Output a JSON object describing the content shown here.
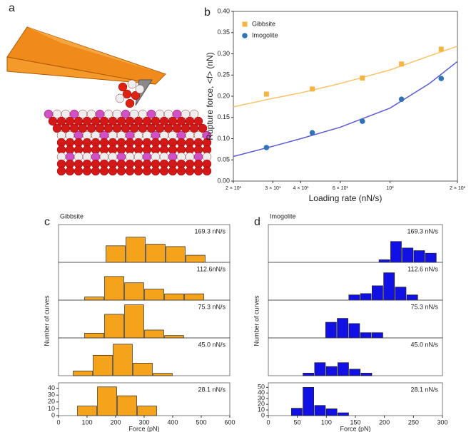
{
  "illustration": {
    "panel_label": "a"
  },
  "chart_data": [
    {
      "type": "scatter",
      "panel_label": "b",
      "xlabel": "Loading rate (nN/s)",
      "ylabel": "Rupture force, <f> (nN)",
      "xscale": "log",
      "xlim": [
        20,
        200
      ],
      "xticks": [
        {
          "value": 20,
          "label": "2 × 10¹"
        },
        {
          "value": 30,
          "label": "3 × 10¹"
        },
        {
          "value": 40,
          "label": "4 × 10¹"
        },
        {
          "value": 60,
          "label": "6 × 10¹"
        },
        {
          "value": 100,
          "label": "10²"
        },
        {
          "value": 200,
          "label": "2 × 10²"
        }
      ],
      "ylim": [
        0,
        0.4
      ],
      "yticks": [
        {
          "value": 0,
          "label": "0.00"
        },
        {
          "value": 0.05,
          "label": "0.05"
        },
        {
          "value": 0.1,
          "label": "0.10"
        },
        {
          "value": 0.15,
          "label": "0.15"
        },
        {
          "value": 0.2,
          "label": "0.20"
        },
        {
          "value": 0.25,
          "label": "0.25"
        },
        {
          "value": 0.3,
          "label": "0.30"
        },
        {
          "value": 0.35,
          "label": "0.35"
        },
        {
          "value": 0.4,
          "label": "0.40"
        }
      ],
      "legend": "upper left",
      "series": [
        {
          "name": "Gibbsite",
          "color": "#f6b443",
          "marker": "square",
          "x": [
            28.1,
            45.0,
            75.3,
            112.6,
            169.3
          ],
          "values": [
            0.205,
            0.217,
            0.243,
            0.276,
            0.311
          ]
        },
        {
          "name": "Imogolite",
          "color": "#2f75b5",
          "marker": "circle",
          "x": [
            28.1,
            45.0,
            75.3,
            112.6,
            169.3
          ],
          "values": [
            0.079,
            0.114,
            0.141,
            0.193,
            0.242
          ]
        }
      ],
      "fits": [
        {
          "color": "#f8c46a",
          "x": [
            20,
            30,
            40,
            60,
            100,
            150,
            200
          ],
          "values": [
            0.175,
            0.195,
            0.208,
            0.23,
            0.262,
            0.295,
            0.318
          ]
        },
        {
          "color": "#5b5bd8",
          "x": [
            20,
            30,
            40,
            60,
            100,
            150,
            200
          ],
          "values": [
            0.058,
            0.082,
            0.1,
            0.127,
            0.172,
            0.23,
            0.282
          ]
        }
      ]
    },
    {
      "type": "histogram-stack",
      "panel_label": "c",
      "title": "Gibbsite",
      "xlabel": "Force (pN)",
      "ylabel": "Number of curves",
      "color": "#f5a31a",
      "xlim": [
        0,
        600
      ],
      "xticks": [
        0,
        100,
        200,
        300,
        400,
        500,
        600
      ],
      "panels": [
        {
          "label": "169.3 nN/s",
          "bins": [
            165,
            235,
            305,
            375,
            445,
            515
          ],
          "counts": [
            21,
            32,
            23,
            20,
            9
          ],
          "ylim": [
            0,
            48
          ]
        },
        {
          "label": "112.6nN/s",
          "bins": [
            90,
            160,
            230,
            300,
            370,
            440,
            510
          ],
          "counts": [
            4,
            30,
            22,
            14,
            8,
            8
          ],
          "ylim": [
            0,
            48
          ]
        },
        {
          "label": "75.3 nN/s",
          "bins": [
            90,
            160,
            230,
            300,
            370,
            440
          ],
          "counts": [
            6,
            30,
            42,
            10,
            3
          ],
          "ylim": [
            0,
            48
          ]
        },
        {
          "label": "45.0 nN/s",
          "bins": [
            50,
            120,
            190,
            260,
            330,
            400
          ],
          "counts": [
            6,
            26,
            40,
            16,
            3
          ],
          "ylim": [
            0,
            48
          ]
        },
        {
          "label": "28.1 nN/s",
          "bins": [
            65,
            135,
            205,
            275,
            345
          ],
          "counts": [
            14,
            42,
            29,
            14
          ],
          "ylim": [
            0,
            48
          ],
          "yticks": [
            0,
            10,
            20,
            30,
            40
          ]
        }
      ]
    },
    {
      "type": "histogram-stack",
      "panel_label": "d",
      "title": "Imogolite",
      "xlabel": "Force (pN)",
      "ylabel": "Number of curves",
      "color": "#1111e6",
      "xlim": [
        0,
        300
      ],
      "xticks": [
        0,
        50,
        100,
        150,
        200,
        250,
        300
      ],
      "panels": [
        {
          "label": "169.3 nN/s",
          "bins": [
            190,
            210,
            230,
            250,
            270,
            290
          ],
          "counts": [
            4,
            32,
            22,
            18,
            14
          ],
          "ylim": [
            0,
            58
          ]
        },
        {
          "label": "112.6 nN/s",
          "bins": [
            138,
            158,
            178,
            198,
            218,
            238,
            258
          ],
          "counts": [
            8,
            10,
            22,
            42,
            20,
            8
          ],
          "ylim": [
            0,
            58
          ]
        },
        {
          "label": "75.3 nN/s",
          "bins": [
            98,
            118,
            138,
            158,
            178,
            198
          ],
          "counts": [
            24,
            30,
            22,
            8,
            8
          ],
          "ylim": [
            0,
            58
          ]
        },
        {
          "label": "45.0 nN/s",
          "bins": [
            59,
            79,
            99,
            119,
            139,
            159,
            179
          ],
          "counts": [
            4,
            20,
            14,
            20,
            10,
            4
          ],
          "ylim": [
            0,
            58
          ]
        },
        {
          "label": "28.1 nN/s",
          "bins": [
            39,
            59,
            79,
            99,
            119,
            139
          ],
          "counts": [
            13,
            50,
            18,
            12,
            5
          ],
          "ylim": [
            0,
            58
          ],
          "yticks": [
            0,
            10,
            20,
            30,
            40,
            50
          ]
        }
      ]
    }
  ]
}
